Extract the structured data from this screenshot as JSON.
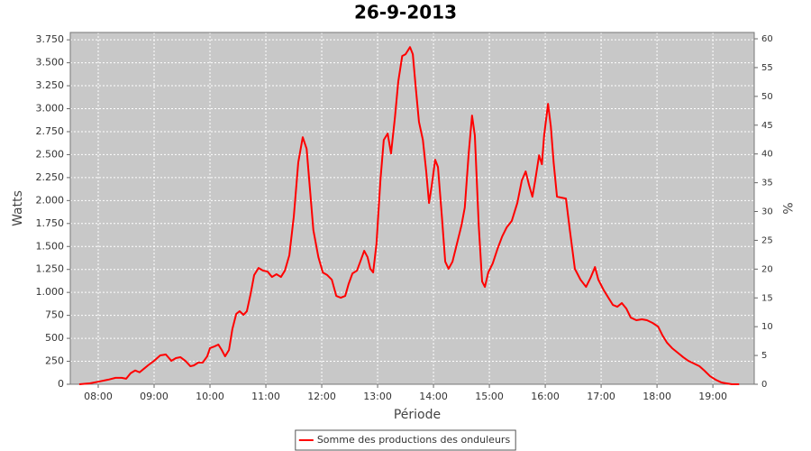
{
  "chart_data": {
    "type": "line",
    "title": "26-9-2013",
    "x_label": "Période",
    "y_label": "Watts",
    "y2_label": "%",
    "xlim": [
      7.5,
      19.74
    ],
    "xticks": [
      {
        "value": 8,
        "label": "08:00"
      },
      {
        "value": 9,
        "label": "09:00"
      },
      {
        "value": 10,
        "label": "10:00"
      },
      {
        "value": 11,
        "label": "11:00"
      },
      {
        "value": 12,
        "label": "12:00"
      },
      {
        "value": 13,
        "label": "13:00"
      },
      {
        "value": 14,
        "label": "14:00"
      },
      {
        "value": 15,
        "label": "15:00"
      },
      {
        "value": 16,
        "label": "16:00"
      },
      {
        "value": 17,
        "label": "17:00"
      },
      {
        "value": 18,
        "label": "18:00"
      },
      {
        "value": 19,
        "label": "19:00"
      }
    ],
    "ylim": [
      0,
      3830
    ],
    "yticks": [
      0,
      250,
      500,
      750,
      {
        "value": 1000,
        "label": "1.000"
      },
      {
        "value": 1250,
        "label": "1.250"
      },
      {
        "value": 1500,
        "label": "1.500"
      },
      {
        "value": 1750,
        "label": "1.750"
      },
      {
        "value": 2000,
        "label": "2.000"
      },
      {
        "value": 2250,
        "label": "2.250"
      },
      {
        "value": 2500,
        "label": "2.500"
      },
      {
        "value": 2750,
        "label": "2.750"
      },
      {
        "value": 3000,
        "label": "3.000"
      },
      {
        "value": 3250,
        "label": "3.250"
      },
      {
        "value": 3500,
        "label": "3.500"
      },
      {
        "value": 3750,
        "label": "3.750"
      }
    ],
    "y2lim": [
      0,
      61.1
    ],
    "y2ticks": [
      0,
      5,
      10,
      15,
      20,
      25,
      30,
      35,
      40,
      45,
      50,
      55,
      60
    ],
    "grid": true,
    "legend": "bottom",
    "x": [
      7.66,
      7.85,
      8.02,
      8.18,
      8.31,
      8.42,
      8.5,
      8.58,
      8.66,
      8.74,
      8.82,
      8.9,
      9.0,
      9.11,
      9.21,
      9.31,
      9.39,
      9.47,
      9.56,
      9.65,
      9.71,
      9.79,
      9.87,
      9.95,
      10.0,
      10.08,
      10.15,
      10.21,
      10.27,
      10.34,
      10.4,
      10.47,
      10.53,
      10.6,
      10.66,
      10.73,
      10.79,
      10.87,
      10.95,
      11.03,
      11.11,
      11.19,
      11.27,
      11.34,
      11.42,
      11.5,
      11.58,
      11.66,
      11.73,
      11.79,
      11.85,
      11.94,
      12.02,
      12.1,
      12.18,
      12.26,
      12.34,
      12.42,
      12.48,
      12.55,
      12.63,
      12.69,
      12.76,
      12.82,
      12.87,
      12.92,
      12.98,
      13.05,
      13.11,
      13.18,
      13.24,
      13.31,
      13.37,
      13.44,
      13.5,
      13.58,
      13.63,
      13.68,
      13.74,
      13.81,
      13.87,
      13.92,
      13.97,
      14.03,
      14.08,
      14.15,
      14.21,
      14.27,
      14.34,
      14.42,
      14.5,
      14.56,
      14.63,
      14.69,
      14.74,
      14.81,
      14.87,
      14.92,
      14.98,
      15.06,
      15.15,
      15.23,
      15.31,
      15.4,
      15.5,
      15.58,
      15.65,
      15.71,
      15.77,
      15.82,
      15.89,
      15.94,
      15.98,
      16.05,
      16.1,
      16.15,
      16.21,
      16.29,
      16.37,
      16.44,
      16.53,
      16.63,
      16.73,
      16.81,
      16.89,
      16.95,
      17.05,
      17.13,
      17.21,
      17.29,
      17.37,
      17.45,
      17.53,
      17.63,
      17.73,
      17.82,
      17.92,
      18.02,
      18.1,
      18.18,
      18.27,
      18.37,
      18.47,
      18.56,
      18.66,
      18.76,
      18.85,
      18.95,
      19.05,
      19.15,
      19.24,
      19.34,
      19.47
    ],
    "series": [
      {
        "name": "Somme des productions des onduleurs",
        "color": "#ff0000",
        "values": [
          0,
          10,
          30,
          50,
          70,
          70,
          60,
          120,
          150,
          130,
          170,
          210,
          255,
          314,
          324,
          255,
          285,
          295,
          255,
          196,
          205,
          236,
          236,
          304,
          393,
          412,
          432,
          373,
          304,
          373,
          599,
          766,
          795,
          756,
          795,
          991,
          1188,
          1266,
          1237,
          1227,
          1168,
          1198,
          1168,
          1237,
          1404,
          1826,
          2415,
          2690,
          2562,
          2120,
          1679,
          1384,
          1217,
          1188,
          1139,
          962,
          942,
          962,
          1090,
          1207,
          1237,
          1335,
          1453,
          1384,
          1257,
          1217,
          1531,
          2218,
          2660,
          2729,
          2513,
          2906,
          3298,
          3573,
          3593,
          3671,
          3593,
          3249,
          2857,
          2660,
          2317,
          1973,
          2169,
          2444,
          2366,
          1826,
          1335,
          1257,
          1335,
          1531,
          1728,
          1924,
          2513,
          2925,
          2709,
          1728,
          1119,
          1060,
          1217,
          1315,
          1482,
          1610,
          1708,
          1777,
          1973,
          2218,
          2317,
          2169,
          2042,
          2218,
          2493,
          2395,
          2709,
          3053,
          2807,
          2415,
          2042,
          2032,
          2022,
          1679,
          1257,
          1139,
          1060,
          1158,
          1276,
          1139,
          1021,
          942,
          864,
          844,
          884,
          825,
          726,
          697,
          707,
          697,
          668,
          628,
          530,
          452,
          393,
          344,
          294,
          255,
          226,
          196,
          147,
          88,
          49,
          20,
          10,
          0,
          0
        ]
      }
    ]
  }
}
